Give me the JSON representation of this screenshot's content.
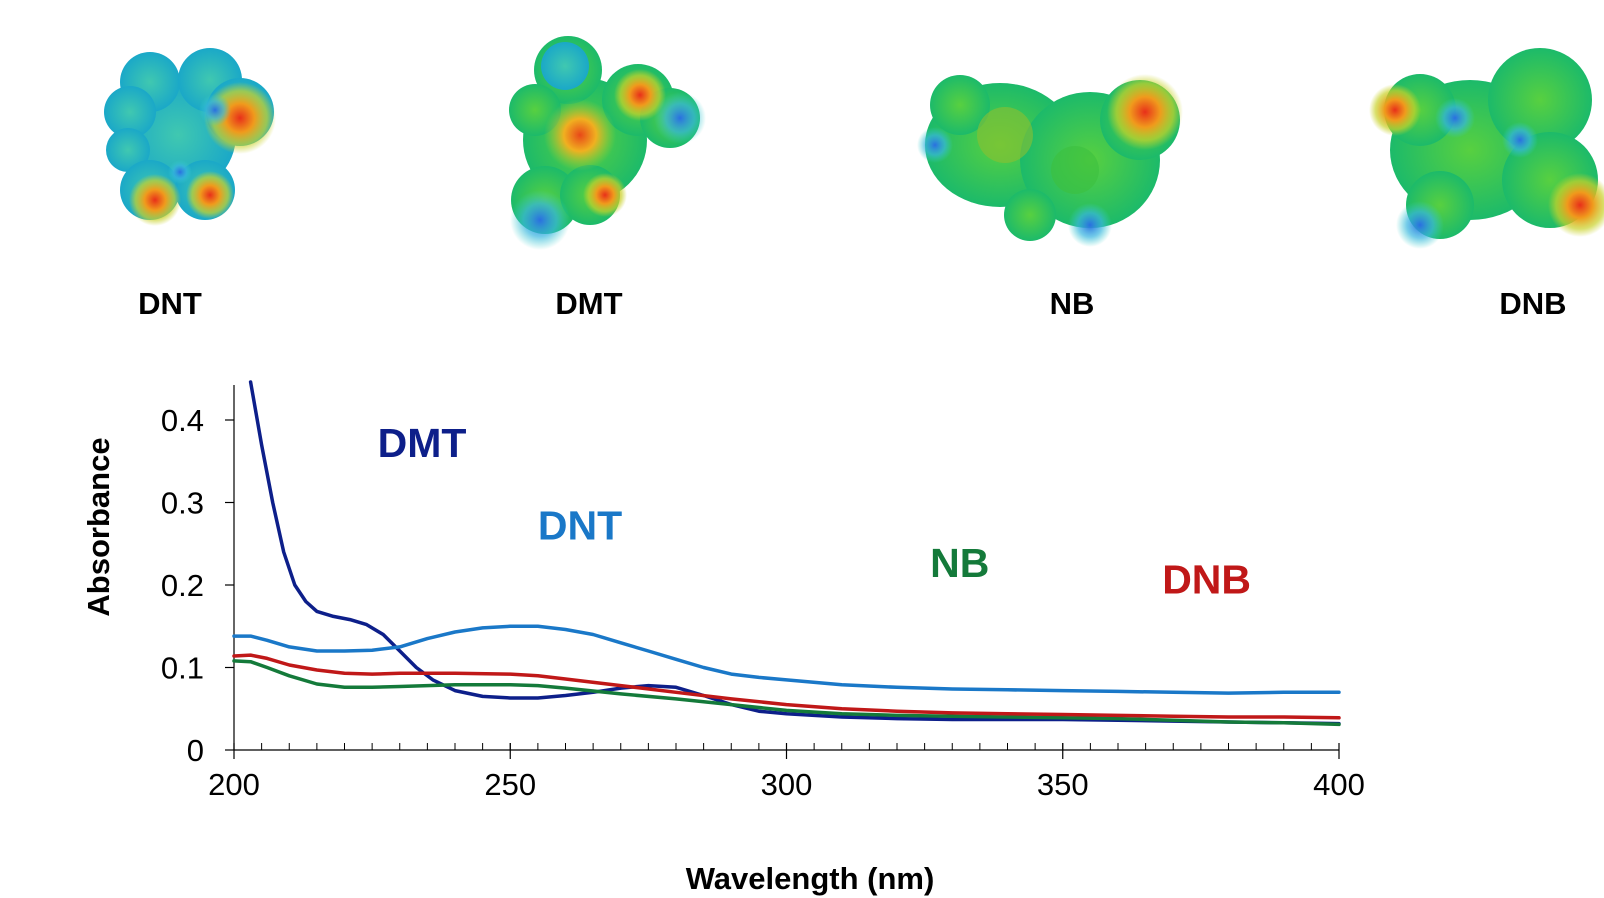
{
  "molecules": [
    {
      "id": "dnt",
      "label": "DNT"
    },
    {
      "id": "dmt",
      "label": "DMT"
    },
    {
      "id": "nb",
      "label": "NB"
    },
    {
      "id": "dnb",
      "label": "DNB"
    }
  ],
  "chart_data": {
    "type": "line",
    "xlabel": "Wavelength (nm)",
    "ylabel": "Absorbance",
    "xlim": [
      200,
      400
    ],
    "ylim": [
      0,
      0.44
    ],
    "xticks": [
      200,
      250,
      300,
      350,
      400
    ],
    "xtick_labels": [
      "200",
      "250",
      "300",
      "350",
      "400"
    ],
    "minor_xtick_step": 5,
    "yticks": [
      0,
      0.1,
      0.2,
      0.3,
      0.4
    ],
    "ytick_labels": [
      "0",
      "0.1",
      "0.2",
      "0.3",
      "0.4"
    ],
    "grid": false,
    "legend": "inline labels",
    "series": [
      {
        "name": "DMT",
        "color": "#0d1f8a",
        "x": [
          203,
          205,
          207,
          209,
          211,
          213,
          215,
          218,
          221,
          224,
          227,
          230,
          233,
          236,
          240,
          245,
          250,
          255,
          260,
          265,
          270,
          275,
          280,
          285,
          290,
          295,
          300,
          310,
          320,
          330,
          340,
          350,
          360,
          370,
          380,
          390,
          400
        ],
        "y": [
          0.45,
          0.37,
          0.3,
          0.24,
          0.2,
          0.18,
          0.168,
          0.162,
          0.158,
          0.152,
          0.14,
          0.12,
          0.1,
          0.085,
          0.072,
          0.065,
          0.063,
          0.063,
          0.066,
          0.07,
          0.075,
          0.078,
          0.076,
          0.066,
          0.055,
          0.047,
          0.044,
          0.04,
          0.038,
          0.037,
          0.037,
          0.037,
          0.036,
          0.035,
          0.034,
          0.033,
          0.032
        ]
      },
      {
        "name": "DNT",
        "color": "#1a78c8",
        "x": [
          200,
          203,
          206,
          210,
          215,
          220,
          225,
          230,
          235,
          240,
          245,
          250,
          255,
          260,
          265,
          270,
          275,
          280,
          285,
          290,
          295,
          300,
          310,
          320,
          330,
          340,
          350,
          360,
          370,
          380,
          390,
          400
        ],
        "y": [
          0.138,
          0.138,
          0.133,
          0.125,
          0.12,
          0.12,
          0.121,
          0.125,
          0.135,
          0.143,
          0.148,
          0.15,
          0.15,
          0.146,
          0.14,
          0.13,
          0.12,
          0.11,
          0.1,
          0.092,
          0.088,
          0.085,
          0.079,
          0.076,
          0.074,
          0.073,
          0.072,
          0.071,
          0.07,
          0.069,
          0.07,
          0.07
        ]
      },
      {
        "name": "NB",
        "color": "#147a3a",
        "x": [
          200,
          203,
          206,
          210,
          215,
          220,
          225,
          230,
          240,
          250,
          255,
          260,
          270,
          280,
          290,
          300,
          310,
          320,
          330,
          340,
          350,
          360,
          370,
          380,
          390,
          400
        ],
        "y": [
          0.108,
          0.107,
          0.1,
          0.09,
          0.08,
          0.076,
          0.076,
          0.077,
          0.079,
          0.079,
          0.078,
          0.075,
          0.068,
          0.062,
          0.055,
          0.048,
          0.044,
          0.042,
          0.041,
          0.04,
          0.039,
          0.038,
          0.036,
          0.034,
          0.033,
          0.031
        ]
      },
      {
        "name": "DNB",
        "color": "#c01818",
        "x": [
          200,
          203,
          206,
          210,
          215,
          220,
          225,
          230,
          240,
          250,
          255,
          260,
          270,
          280,
          290,
          300,
          310,
          320,
          330,
          340,
          350,
          360,
          370,
          380,
          390,
          400
        ],
        "y": [
          0.114,
          0.115,
          0.111,
          0.103,
          0.097,
          0.093,
          0.092,
          0.093,
          0.093,
          0.092,
          0.09,
          0.086,
          0.078,
          0.07,
          0.062,
          0.055,
          0.05,
          0.047,
          0.045,
          0.044,
          0.043,
          0.042,
          0.041,
          0.04,
          0.04,
          0.039
        ]
      }
    ],
    "annotations": [
      {
        "text": "DMT",
        "color": "#0d1f8a",
        "x": 226,
        "y": 0.355
      },
      {
        "text": "DNT",
        "color": "#1a78c8",
        "x": 255,
        "y": 0.255
      },
      {
        "text": "NB",
        "color": "#147a3a",
        "x": 326,
        "y": 0.21
      },
      {
        "text": "DNB",
        "color": "#c01818",
        "x": 368,
        "y": 0.19
      }
    ]
  }
}
